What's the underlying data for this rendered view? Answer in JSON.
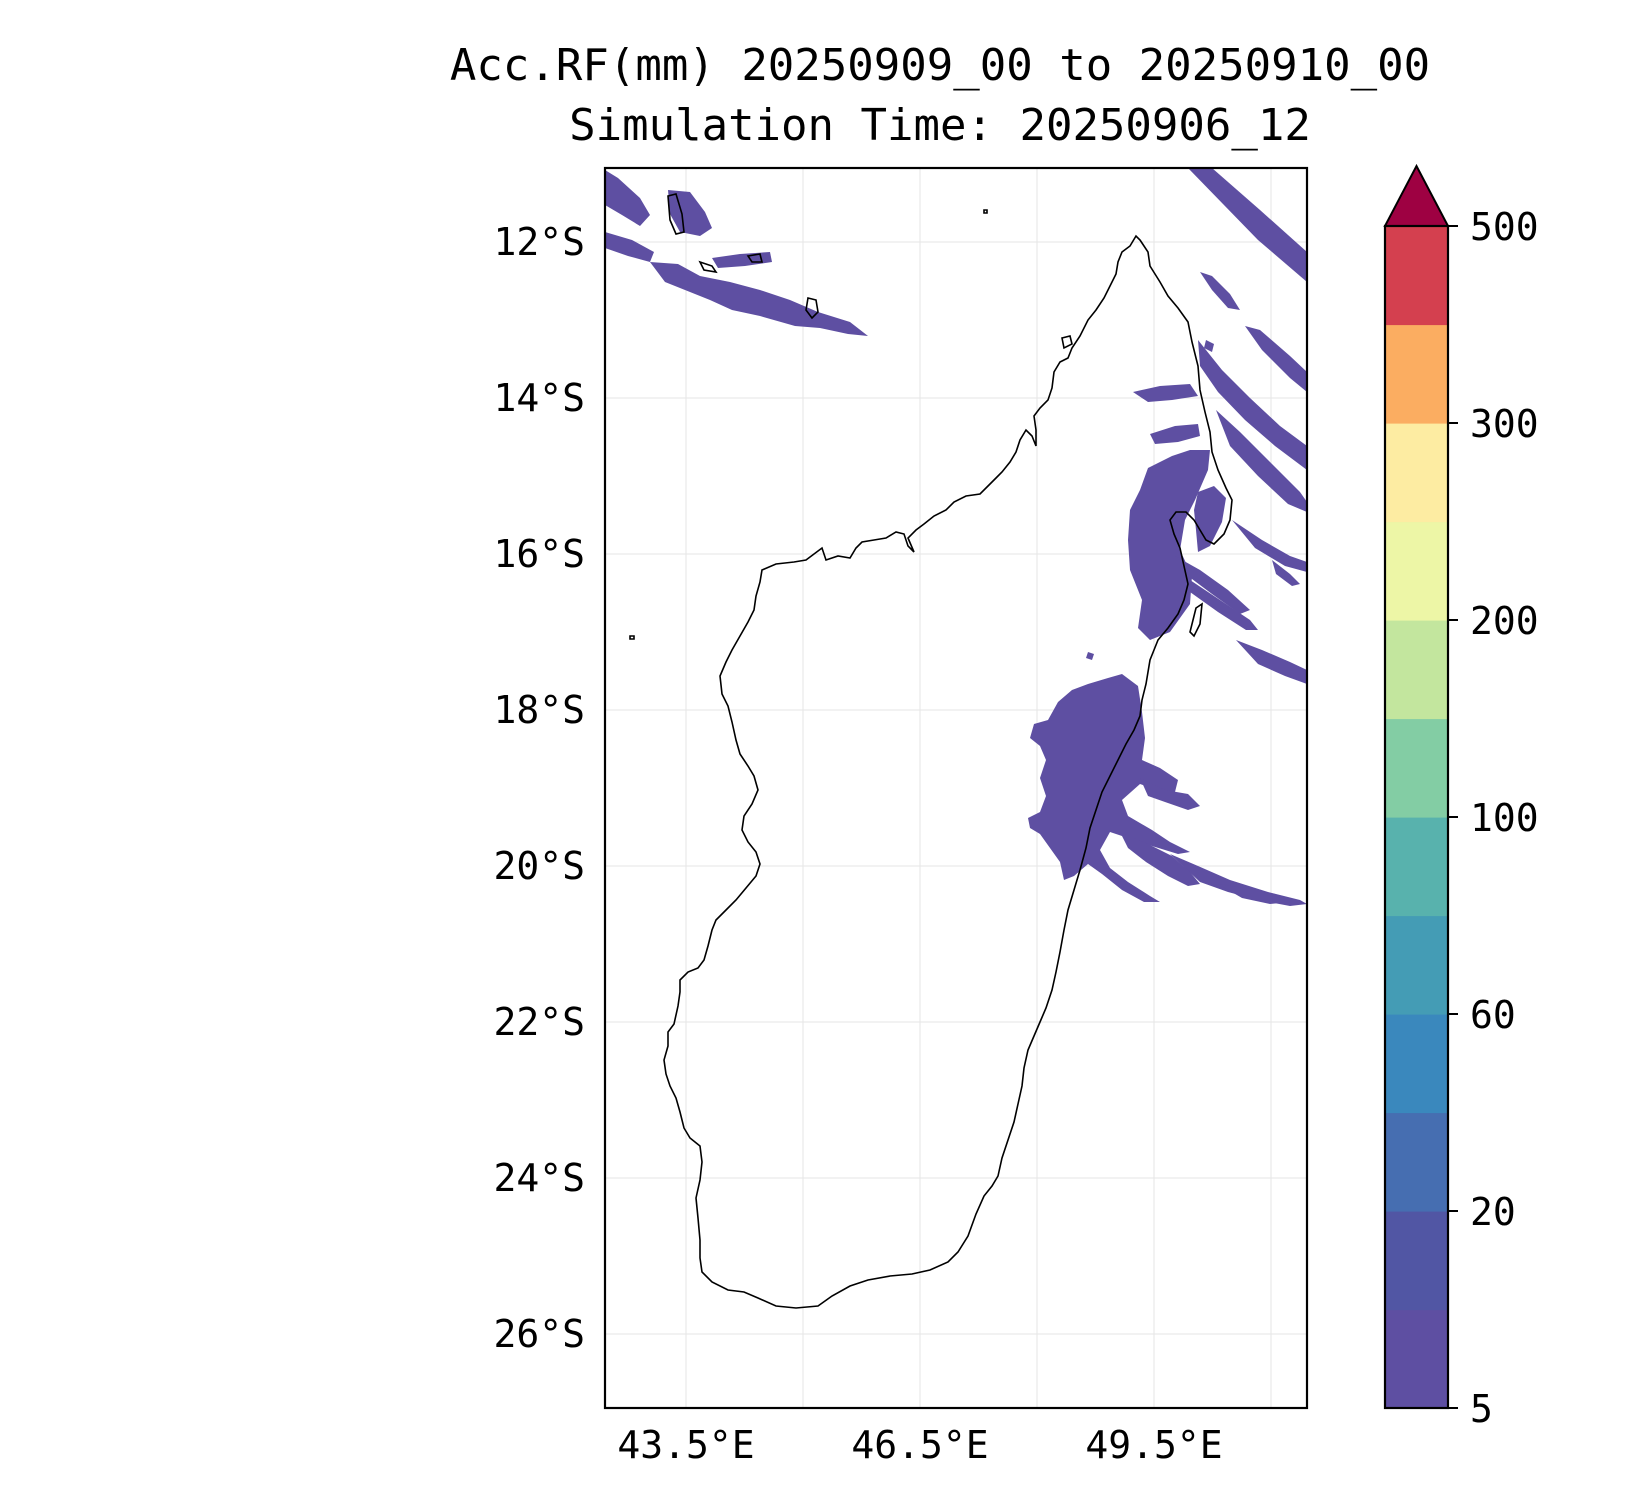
{
  "title": {
    "line1": "Acc.RF(mm) 20250909_00 to 20250910_00",
    "line2": "Simulation Time: 20250906_12"
  },
  "map": {
    "lat_ticks": [
      "12°S",
      "14°S",
      "16°S",
      "18°S",
      "20°S",
      "22°S",
      "24°S",
      "26°S"
    ],
    "lon_ticks": [
      "43.5°E",
      "46.5°E",
      "49.5°E"
    ],
    "lat_values": [
      -12,
      -14,
      -16,
      -18,
      -20,
      -22,
      -24,
      -26
    ],
    "lon_values": [
      43.5,
      46.5,
      49.5
    ],
    "lon_range": [
      42.45,
      51.45
    ],
    "lat_range": [
      -27.0,
      -11.1
    ],
    "grid": true,
    "fill_color": "#5e4fa2"
  },
  "colorbar": {
    "tick_labels": [
      "500",
      "300",
      "200",
      "100",
      "60",
      "20",
      "5"
    ],
    "colors": [
      "#5e4fa2",
      "#5156a4",
      "#466eb1",
      "#3a88bd",
      "#449cb5",
      "#58b2ad",
      "#83cda4",
      "#c3e69e",
      "#edf6a6",
      "#fdeca2",
      "#fbad61",
      "#d4404f"
    ],
    "extend_color": "#9e0142",
    "extend": "max"
  }
}
